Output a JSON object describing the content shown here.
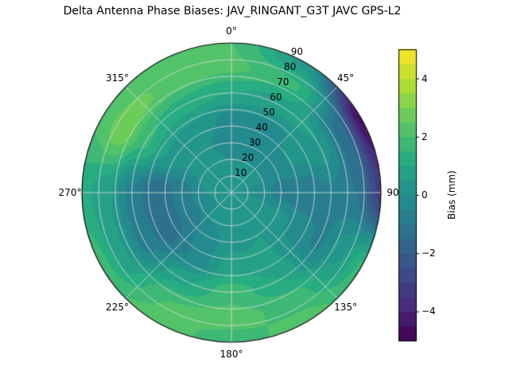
{
  "title": "Delta Antenna Phase Biases: JAV_RINGANT_G3T JAVC GPS-L2",
  "chart_data": {
    "type": "heatmap",
    "projection": "polar",
    "title": "Delta Antenna Phase Biases: JAV_RINGANT_G3T JAVC GPS-L2",
    "colormap": "viridis",
    "colorbar": {
      "label": "Bias (mm)",
      "min": -5,
      "max": 5,
      "step": 0.5,
      "ticks": [
        4,
        2,
        0,
        -2,
        -4
      ],
      "tick_labels": [
        "4",
        "2",
        "0",
        "−2",
        "−4"
      ]
    },
    "angular_ticks": [
      {
        "angle": 0,
        "label": "0°"
      },
      {
        "angle": 45,
        "label": "45°"
      },
      {
        "angle": 90,
        "label": "90"
      },
      {
        "angle": 135,
        "label": "135°"
      },
      {
        "angle": 180,
        "label": "180°"
      },
      {
        "angle": 225,
        "label": "225°"
      },
      {
        "angle": 270,
        "label": "270°"
      },
      {
        "angle": 315,
        "label": "315°"
      }
    ],
    "radial_ticks": [
      {
        "value": 10,
        "label": "10"
      },
      {
        "value": 20,
        "label": "20"
      },
      {
        "value": 30,
        "label": "30"
      },
      {
        "value": 40,
        "label": "40"
      },
      {
        "value": 50,
        "label": "50"
      },
      {
        "value": 60,
        "label": "60"
      },
      {
        "value": 70,
        "label": "70"
      },
      {
        "value": 80,
        "label": "80"
      },
      {
        "value": 90,
        "label": "90"
      }
    ],
    "zenith_range": [
      0,
      90
    ],
    "azimuth_deg": [
      0,
      30,
      60,
      90,
      120,
      150,
      180,
      210,
      240,
      270,
      300,
      330
    ],
    "zenith_deg": [
      0,
      15,
      30,
      45,
      60,
      75,
      90
    ],
    "bias_mm": [
      [
        0.4,
        0.2,
        -0.4,
        -0.2,
        1.0,
        2.1,
        2.0
      ],
      [
        0.4,
        0.2,
        -0.4,
        -0.2,
        0.8,
        1.6,
        0.3
      ],
      [
        0.4,
        0.1,
        -0.3,
        0.2,
        0.5,
        -1.2,
        -4.6
      ],
      [
        0.4,
        -0.1,
        -0.7,
        -0.9,
        -0.6,
        -1.0,
        -3.2
      ],
      [
        0.4,
        0.2,
        0.3,
        -0.2,
        -0.6,
        0.4,
        1.6
      ],
      [
        0.4,
        0.4,
        0.5,
        0.6,
        1.0,
        1.8,
        2.2
      ],
      [
        0.4,
        0.4,
        0.3,
        0.8,
        1.8,
        2.2,
        1.8
      ],
      [
        0.4,
        0.2,
        -0.3,
        -0.4,
        0.9,
        2.0,
        2.2
      ],
      [
        0.4,
        -0.1,
        -0.9,
        -1.3,
        -0.7,
        0.6,
        1.8
      ],
      [
        0.4,
        0.0,
        -0.8,
        -1.5,
        -0.7,
        0.6,
        1.2
      ],
      [
        0.4,
        0.2,
        0.0,
        0.5,
        1.6,
        2.9,
        2.1
      ],
      [
        0.4,
        0.3,
        0.1,
        0.4,
        1.3,
        2.4,
        2.3
      ]
    ],
    "grid": true,
    "legend_position": "right-colorbar"
  },
  "colors": {
    "background": "#ffffff",
    "grid_line": "#dedede",
    "spine": "#000000",
    "text": "#000000"
  }
}
